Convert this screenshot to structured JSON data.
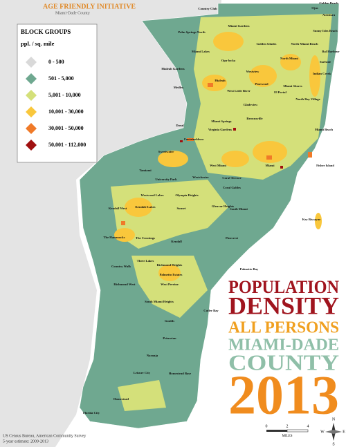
{
  "header": {
    "title": "AGE FRIENDLY INITIATIVE",
    "subtitle": "Miami-Dade County"
  },
  "legend": {
    "title": "BLOCK GROUPS",
    "unit": "ppl. / sq. mile",
    "items": [
      {
        "label": "0 - 500",
        "color": "#d9d9d9"
      },
      {
        "label": "501 - 5,000",
        "color": "#6fa890"
      },
      {
        "label": "5,001 - 10,000",
        "color": "#d4e07a"
      },
      {
        "label": "10,001 - 30,000",
        "color": "#f9c73c"
      },
      {
        "label": "30,001 - 50,000",
        "color": "#f07a28"
      },
      {
        "label": "50,001 - 112,000",
        "color": "#a01010"
      }
    ]
  },
  "title_lines": [
    "POPULATION",
    "DENSITY",
    "ALL PERSONS",
    "MIAMI-DADE",
    "COUNTY",
    "2013"
  ],
  "places": [
    "Country Club",
    "Miami Gardens",
    "Palm Springs North",
    "Miami Lakes",
    "Golden Glades",
    "North Miami Beach",
    "Ojus",
    "Golden Beach",
    "Aventura",
    "Sunny Isles Beach",
    "Opa-locka",
    "Hialeah Gardens",
    "Hialeah",
    "Medley",
    "Westview",
    "North Miami",
    "Pinewood",
    "Miami Shores",
    "West Little River",
    "El Portal",
    "Bal Harbour",
    "Surfside",
    "Indian Creek",
    "North Bay Village",
    "Gladeview",
    "Brownsville",
    "Miami Springs",
    "Virginia Gardens",
    "Doral",
    "Miami Beach",
    "Fisher Island",
    "Sweetwater",
    "Fontainebleau",
    "West Miami",
    "Miami",
    "Tamiami",
    "University Park",
    "Westchester",
    "Coral Terrace",
    "Coral Gables",
    "Westwood Lakes",
    "Olympia Heights",
    "Kendall West",
    "Kendale Lakes",
    "Sunset",
    "Glenvar Heights",
    "South Miami",
    "Key Biscayne",
    "The Hammocks",
    "The Crossings",
    "Kendall",
    "Pinecrest",
    "Country Walk",
    "Three Lakes",
    "Richmond Heights",
    "Palmetto Bay",
    "Palmetto Estates",
    "Richmond West",
    "West Perrine",
    "South Miami Heights",
    "Cutler Bay",
    "Goulds",
    "Princeton",
    "Naranja",
    "Leisure City",
    "Homestead Base",
    "Homestead",
    "Florida City"
  ],
  "source": [
    "US Census Bureau, American Community Survey",
    "5-year estimate: 2009-2013"
  ],
  "scale": {
    "ticks": [
      "0",
      "2",
      "4"
    ],
    "unit": "MILES"
  },
  "compass": [
    "N",
    "E",
    "S",
    "W"
  ]
}
